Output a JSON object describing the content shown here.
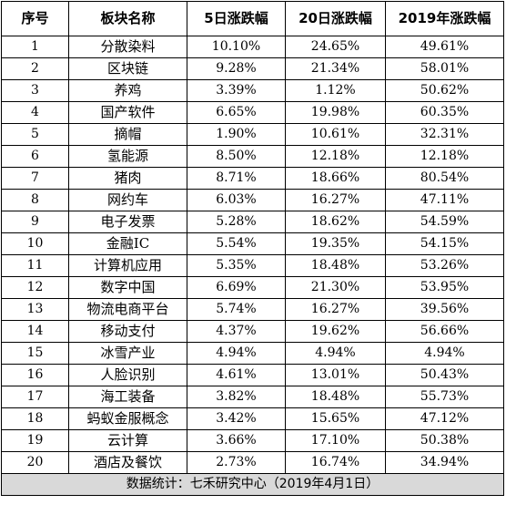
{
  "table": {
    "headers": [
      "序号",
      "板块名称",
      "5日涨跌幅",
      "20日涨跌幅",
      "2019年涨跌幅"
    ],
    "rows": [
      [
        "1",
        "分散染料",
        "10.10%",
        "24.65%",
        "49.61%"
      ],
      [
        "2",
        "区块链",
        "9.28%",
        "21.34%",
        "58.01%"
      ],
      [
        "3",
        "养鸡",
        "3.39%",
        "1.12%",
        "50.62%"
      ],
      [
        "4",
        "国产软件",
        "6.65%",
        "19.98%",
        "60.35%"
      ],
      [
        "5",
        "摘帽",
        "1.90%",
        "10.61%",
        "32.31%"
      ],
      [
        "6",
        "氢能源",
        "8.50%",
        "12.18%",
        "12.18%"
      ],
      [
        "7",
        "猪肉",
        "8.71%",
        "18.66%",
        "80.54%"
      ],
      [
        "8",
        "网约车",
        "6.03%",
        "16.27%",
        "47.11%"
      ],
      [
        "9",
        "电子发票",
        "5.28%",
        "18.62%",
        "54.59%"
      ],
      [
        "10",
        "金融IC",
        "5.54%",
        "19.35%",
        "54.15%"
      ],
      [
        "11",
        "计算机应用",
        "5.35%",
        "18.48%",
        "53.26%"
      ],
      [
        "12",
        "数字中国",
        "6.69%",
        "21.30%",
        "53.95%"
      ],
      [
        "13",
        "物流电商平台",
        "5.74%",
        "16.27%",
        "39.56%"
      ],
      [
        "14",
        "移动支付",
        "4.37%",
        "19.62%",
        "56.66%"
      ],
      [
        "15",
        "冰雪产业",
        "4.94%",
        "4.94%",
        "4.94%"
      ],
      [
        "16",
        "人脸识别",
        "4.61%",
        "13.01%",
        "50.43%"
      ],
      [
        "17",
        "海工装备",
        "3.82%",
        "18.48%",
        "55.73%"
      ],
      [
        "18",
        "蚂蚁金服概念",
        "3.42%",
        "15.65%",
        "47.12%"
      ],
      [
        "19",
        "云计算",
        "3.66%",
        "17.10%",
        "50.38%"
      ],
      [
        "20",
        "酒店及餐饮",
        "2.73%",
        "16.74%",
        "34.94%"
      ]
    ],
    "footer": "数据统计：七禾研究中心（2019年4月1日）"
  },
  "colors": {
    "border": "#000000",
    "footer_background": "#d9d9d9",
    "text": "#000000"
  }
}
